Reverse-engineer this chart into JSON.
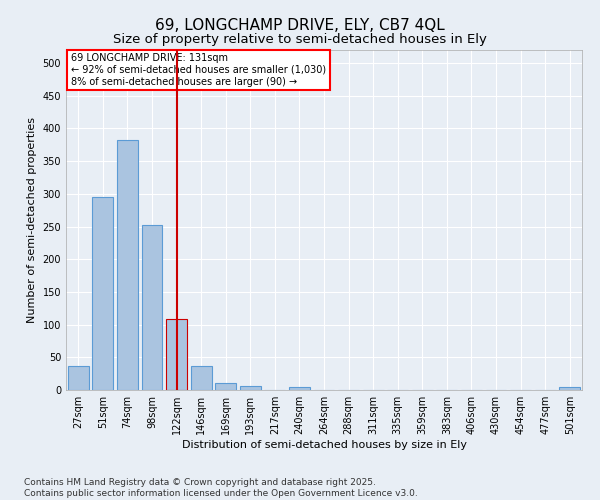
{
  "title": "69, LONGCHAMP DRIVE, ELY, CB7 4QL",
  "subtitle": "Size of property relative to semi-detached houses in Ely",
  "xlabel": "Distribution of semi-detached houses by size in Ely",
  "ylabel": "Number of semi-detached properties",
  "footnote": "Contains HM Land Registry data © Crown copyright and database right 2025.\nContains public sector information licensed under the Open Government Licence v3.0.",
  "categories": [
    "27sqm",
    "51sqm",
    "74sqm",
    "98sqm",
    "122sqm",
    "146sqm",
    "169sqm",
    "193sqm",
    "217sqm",
    "240sqm",
    "264sqm",
    "288sqm",
    "311sqm",
    "335sqm",
    "359sqm",
    "383sqm",
    "406sqm",
    "430sqm",
    "454sqm",
    "477sqm",
    "501sqm"
  ],
  "values": [
    37,
    295,
    383,
    253,
    109,
    37,
    10,
    6,
    0,
    4,
    0,
    0,
    0,
    0,
    0,
    0,
    0,
    0,
    0,
    0,
    4
  ],
  "bar_color": "#aac4e0",
  "bar_edgecolor": "#5b9bd5",
  "highlight_bar_index": 4,
  "highlight_bar_edgecolor": "#cc0000",
  "vline_color": "#cc0000",
  "annotation_box_text": "69 LONGCHAMP DRIVE: 131sqm\n← 92% of semi-detached houses are smaller (1,030)\n8% of semi-detached houses are larger (90) →",
  "ylim": [
    0,
    520
  ],
  "yticks": [
    0,
    50,
    100,
    150,
    200,
    250,
    300,
    350,
    400,
    450,
    500
  ],
  "bg_color": "#e8eef5",
  "grid_color": "#ffffff",
  "title_fontsize": 11,
  "subtitle_fontsize": 9.5,
  "axis_label_fontsize": 8,
  "tick_fontsize": 7,
  "footnote_fontsize": 6.5
}
